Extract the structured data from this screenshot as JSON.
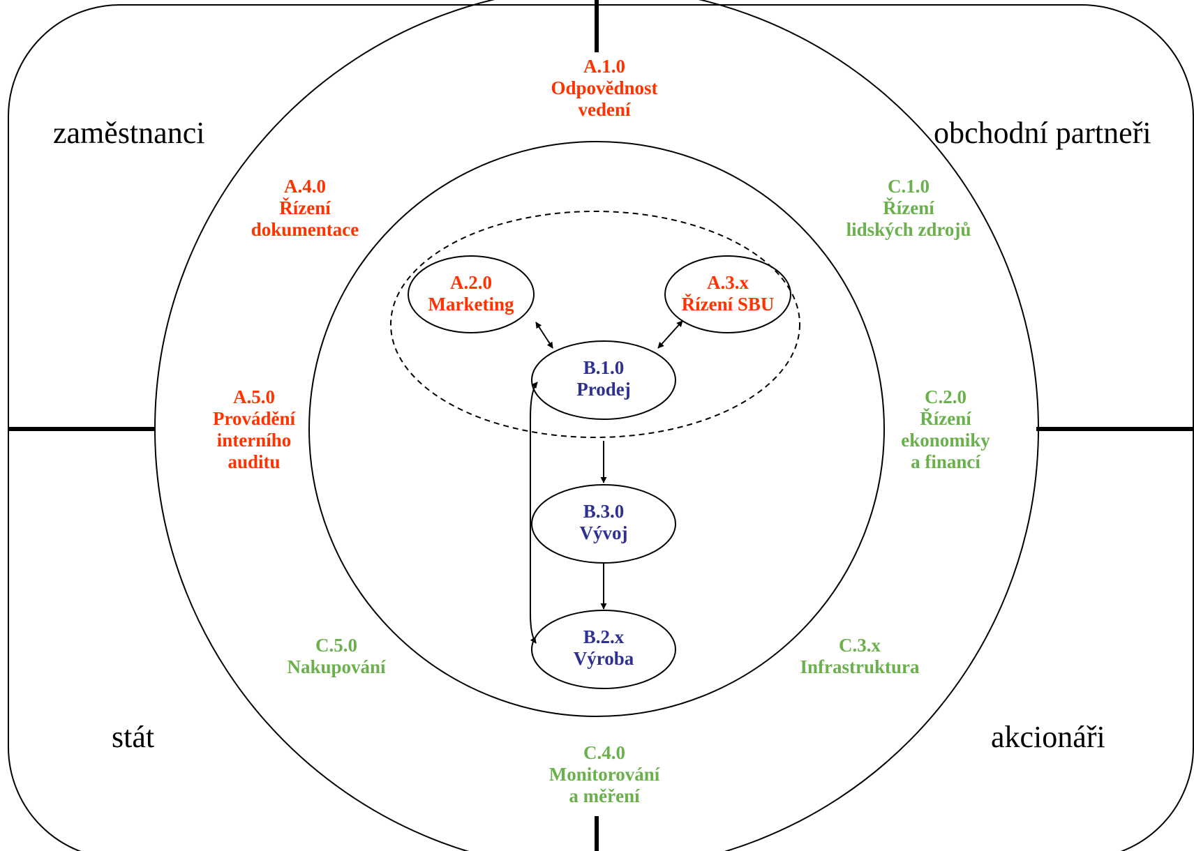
{
  "colors": {
    "management": "#ff3300",
    "support": "#6ab04c",
    "core": "#2e3192",
    "lines": "#000000"
  },
  "stakeholders": {
    "top_left": "zaměstnanci",
    "top_right": "obchodní partneři",
    "bottom_left": "stát",
    "bottom_right": "akcionáři"
  },
  "processes": {
    "a1": {
      "code": "A.1.0",
      "name": [
        "Odpovědnost",
        "vedení"
      ]
    },
    "a2": {
      "code": "A.2.0",
      "name": [
        "Marketing"
      ]
    },
    "a3": {
      "code": "A.3.x",
      "name": [
        "Řízení SBU"
      ]
    },
    "a4": {
      "code": "A.4.0",
      "name": [
        "Řízení",
        "dokumentace"
      ]
    },
    "a5": {
      "code": "A.5.0",
      "name": [
        "Provádění",
        "interního",
        "auditu"
      ]
    },
    "b1": {
      "code": "B.1.0",
      "name": [
        "Prodej"
      ]
    },
    "b2": {
      "code": "B.2.x",
      "name": [
        "Výroba"
      ]
    },
    "b3": {
      "code": "B.3.0",
      "name": [
        "Vývoj"
      ]
    },
    "c1": {
      "code": "C.1.0",
      "name": [
        "Řízení",
        "lidských zdrojů"
      ]
    },
    "c2": {
      "code": "C.2.0",
      "name": [
        "Řízení",
        "ekonomiky",
        "a financí"
      ]
    },
    "c3": {
      "code": "C.3.x",
      "name": [
        "Infrastruktura"
      ]
    },
    "c4": {
      "code": "C.4.0",
      "name": [
        "Monitorování",
        "a měření"
      ]
    },
    "c5": {
      "code": "C.5.0",
      "name": [
        "Nakupování"
      ]
    }
  }
}
